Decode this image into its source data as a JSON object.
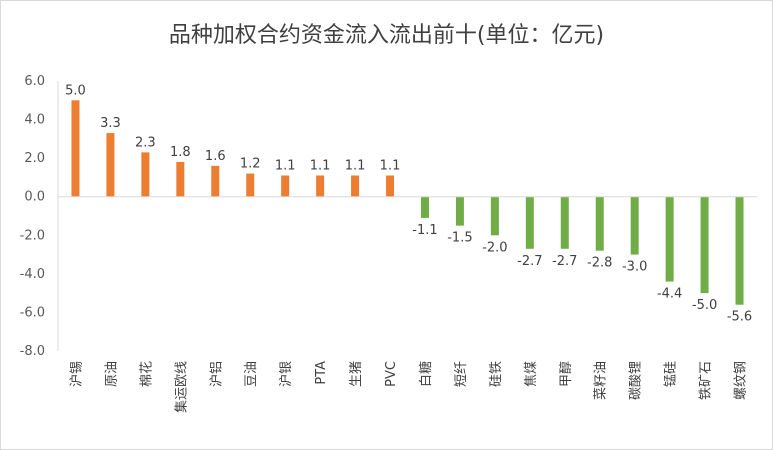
{
  "chart_data": {
    "type": "bar",
    "title": "品种加权合约资金流入流出前十(单位：亿元)",
    "xlabel": "",
    "ylabel": "",
    "ylim": [
      -8.0,
      6.0
    ],
    "yticks": [
      "6.0",
      "4.0",
      "2.0",
      "0.0",
      "-2.0",
      "-4.0",
      "-6.0",
      "-8.0"
    ],
    "grid": false,
    "legend": "none",
    "categories": [
      "沪锡",
      "原油",
      "棉花",
      "集运欧线",
      "沪铝",
      "豆油",
      "沪银",
      "PTA",
      "生猪",
      "PVC",
      "白糖",
      "短纤",
      "硅铁",
      "焦煤",
      "甲醇",
      "菜籽油",
      "碳酸锂",
      "锰硅",
      "铁矿石",
      "螺纹钢"
    ],
    "values": [
      5.0,
      3.3,
      2.3,
      1.8,
      1.6,
      1.2,
      1.1,
      1.1,
      1.1,
      1.1,
      -1.1,
      -1.5,
      -2.0,
      -2.7,
      -2.7,
      -2.8,
      -3.0,
      -4.4,
      -5.0,
      -5.6
    ],
    "value_labels": [
      "5.0",
      "3.3",
      "2.3",
      "1.8",
      "1.6",
      "1.2",
      "1.1",
      "1.1",
      "1.1",
      "1.1",
      "-1.1",
      "-1.5",
      "-2.0",
      "-2.7",
      "-2.7",
      "-2.8",
      "-3.0",
      "-4.4",
      "-5.0",
      "-5.6"
    ],
    "colors": {
      "positive": "#ED7D31",
      "negative": "#70AD47",
      "axis": "#d9d9d9"
    }
  }
}
